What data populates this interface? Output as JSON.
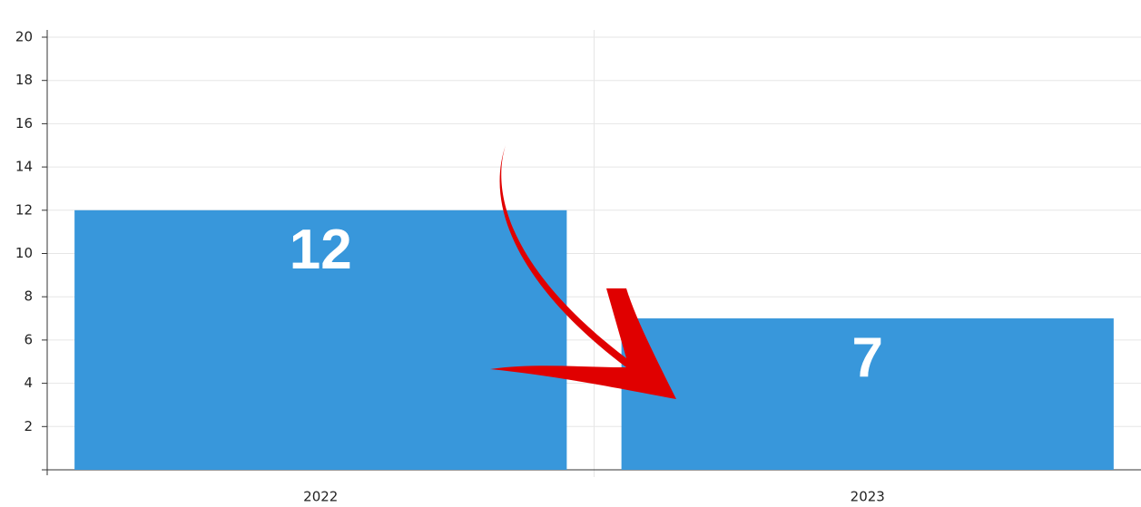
{
  "chart_data": {
    "type": "bar",
    "categories": [
      "2022",
      "2023"
    ],
    "values": [
      12,
      7
    ],
    "color": "#3897db",
    "ylim": [
      0,
      20
    ],
    "yticks": [
      2,
      4,
      6,
      8,
      10,
      12,
      14,
      16,
      18,
      20
    ],
    "grid": true
  }
}
